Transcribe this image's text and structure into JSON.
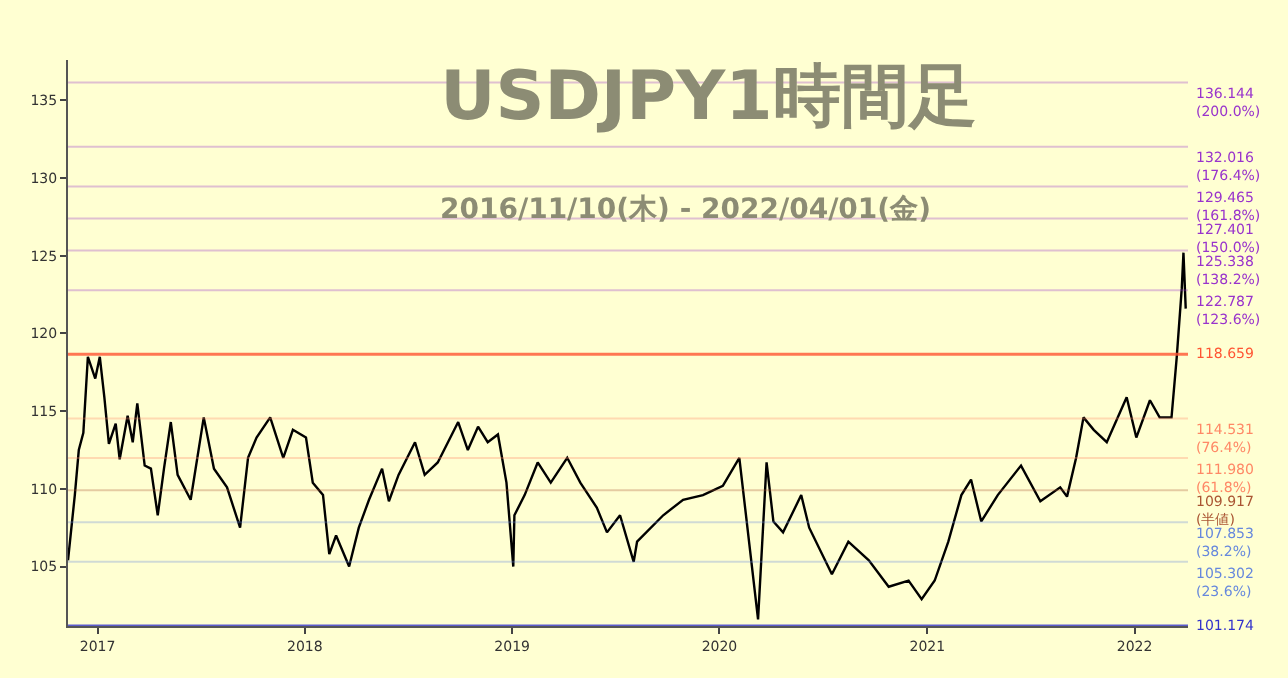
{
  "chart_data": {
    "type": "line",
    "title": "USDJPY1時間足",
    "subtitle": "2016/11/10(木) - 2022/04/01(金)",
    "x": [
      "2016-11-10",
      "2016-11-22",
      "2016-11-29",
      "2016-12-07",
      "2016-12-15",
      "2016-12-28",
      "2017-01-05",
      "2017-01-13",
      "2017-01-21",
      "2017-02-02",
      "2017-02-09",
      "2017-02-23",
      "2017-03-04",
      "2017-03-12",
      "2017-03-25",
      "2017-04-05",
      "2017-04-17",
      "2017-04-28",
      "2017-05-10",
      "2017-05-22",
      "2017-06-14",
      "2017-07-07",
      "2017-07-25",
      "2017-08-17",
      "2017-09-09",
      "2017-09-23",
      "2017-10-08",
      "2017-11-01",
      "2017-11-24",
      "2017-12-11",
      "2018-01-03",
      "2018-01-15",
      "2018-02-02",
      "2018-02-13",
      "2018-02-25",
      "2018-03-20",
      "2018-04-06",
      "2018-04-24",
      "2018-05-17",
      "2018-05-29",
      "2018-06-15",
      "2018-07-14",
      "2018-07-31",
      "2018-08-23",
      "2018-09-28",
      "2018-10-15",
      "2018-11-02",
      "2018-11-19",
      "2018-12-07",
      "2018-12-22",
      "2019-01-03",
      "2019-01-05",
      "2019-01-23",
      "2019-02-15",
      "2019-03-10",
      "2019-04-08",
      "2019-05-01",
      "2019-05-30",
      "2019-06-17",
      "2019-07-10",
      "2019-08-03",
      "2019-08-09",
      "2019-09-24",
      "2019-10-29",
      "2019-12-03",
      "2020-01-07",
      "2020-02-05",
      "2020-03-09",
      "2020-03-24",
      "2020-04-05",
      "2020-04-22",
      "2020-05-24",
      "2020-06-07",
      "2020-07-17",
      "2020-08-15",
      "2020-09-20",
      "2020-10-25",
      "2020-11-29",
      "2020-12-22",
      "2021-01-14",
      "2021-02-07",
      "2021-03-02",
      "2021-03-19",
      "2021-04-06",
      "2021-05-05",
      "2021-06-15",
      "2021-07-19",
      "2021-08-23",
      "2021-09-04",
      "2021-09-20",
      "2021-10-03",
      "2021-10-21",
      "2021-11-13",
      "2021-12-18",
      "2022-01-04",
      "2022-01-28",
      "2022-02-14",
      "2022-03-07",
      "2022-03-16",
      "2022-03-25",
      "2022-03-28",
      "2022-04-01"
    ],
    "series": [
      {
        "color": "#000000",
        "values": [
          105.4,
          109.6,
          112.5,
          113.6,
          118.5,
          117.1,
          118.5,
          115.9,
          112.9,
          114.2,
          111.9,
          114.7,
          113.0,
          115.5,
          111.5,
          111.3,
          108.3,
          111.3,
          114.3,
          110.9,
          109.3,
          114.6,
          111.3,
          110.1,
          107.5,
          112.0,
          113.3,
          114.6,
          112.0,
          113.8,
          113.3,
          110.4,
          109.6,
          105.8,
          107.0,
          105.0,
          107.5,
          109.3,
          111.3,
          109.2,
          110.9,
          113.0,
          110.9,
          111.7,
          114.3,
          112.5,
          114.0,
          113.0,
          113.5,
          110.4,
          105.0,
          108.3,
          109.6,
          111.7,
          110.4,
          112.0,
          110.4,
          108.8,
          107.2,
          108.3,
          105.3,
          106.6,
          108.3,
          109.3,
          109.6,
          110.2,
          112.0,
          101.6,
          111.7,
          107.9,
          107.2,
          109.6,
          107.5,
          104.5,
          106.6,
          105.4,
          103.7,
          104.1,
          102.9,
          104.1,
          106.6,
          109.6,
          110.6,
          107.9,
          109.6,
          111.5,
          109.2,
          110.1,
          109.5,
          112.0,
          114.6,
          113.8,
          113.0,
          115.9,
          113.3,
          115.7,
          114.6,
          114.6,
          118.4,
          122.9,
          125.2,
          121.6
        ]
      }
    ],
    "xlim": [
      "2016-11-10",
      "2022-04-05"
    ],
    "xticks": [
      {
        "value": "2017-01-01",
        "label": "2017"
      },
      {
        "value": "2018-01-01",
        "label": "2018"
      },
      {
        "value": "2019-01-01",
        "label": "2019"
      },
      {
        "value": "2020-01-01",
        "label": "2020"
      },
      {
        "value": "2021-01-01",
        "label": "2021"
      },
      {
        "value": "2022-01-01",
        "label": "2022"
      }
    ],
    "ylim": [
      101.174,
      137.6
    ],
    "yticks": [
      105,
      110,
      115,
      120,
      125,
      130,
      135
    ],
    "ref_lines": [
      {
        "axis": "y",
        "value": 136.144,
        "label": "136.144\n(200.0%)",
        "color": "#9933cc"
      },
      {
        "axis": "y",
        "value": 132.016,
        "label": "132.016\n(176.4%)",
        "color": "#9933cc"
      },
      {
        "axis": "y",
        "value": 129.465,
        "label": "129.465\n(161.8%)",
        "color": "#9933cc"
      },
      {
        "axis": "y",
        "value": 127.401,
        "label": "127.401\n(150.0%)",
        "color": "#9933cc"
      },
      {
        "axis": "y",
        "value": 125.338,
        "label": "125.338\n(138.2%)",
        "color": "#9933cc"
      },
      {
        "axis": "y",
        "value": 122.787,
        "label": "122.787\n(123.6%)",
        "color": "#9933cc"
      },
      {
        "axis": "y",
        "value": 118.659,
        "label": "118.659",
        "color": "#ff5533"
      },
      {
        "axis": "y",
        "value": 114.531,
        "label": "114.531\n(76.4%)",
        "color": "#ff8866"
      },
      {
        "axis": "y",
        "value": 111.98,
        "label": "111.980\n(61.8%)",
        "color": "#ff8866"
      },
      {
        "axis": "y",
        "value": 109.917,
        "label": "109.917\n(半値)",
        "color": "#aa5533"
      },
      {
        "axis": "y",
        "value": 107.853,
        "label": "107.853\n(38.2%)",
        "color": "#6688dd"
      },
      {
        "axis": "y",
        "value": 105.302,
        "label": "105.302\n(23.6%)",
        "color": "#6688dd"
      },
      {
        "axis": "y",
        "value": 101.174,
        "label": "101.174",
        "color": "#3333cc"
      }
    ],
    "grid": false
  }
}
